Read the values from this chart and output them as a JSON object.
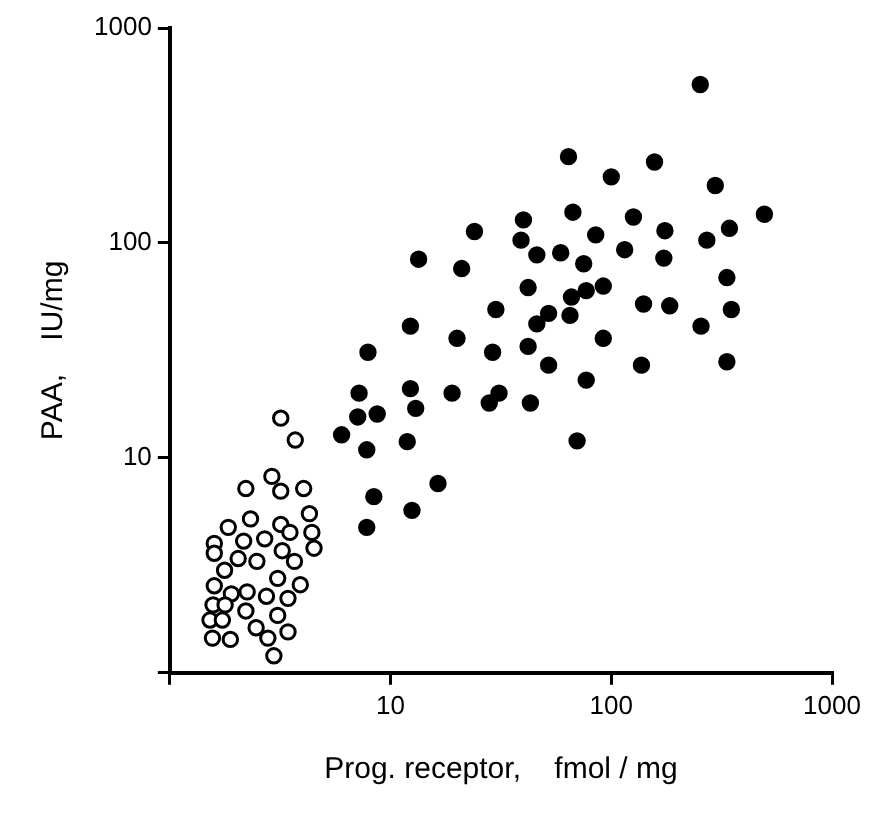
{
  "chart_data": {
    "type": "scatter",
    "xlabel": "Prog. receptor,    fmol / mg",
    "ylabel": "PAA,    IU/mg",
    "log": "xy",
    "grid": false,
    "legend": false,
    "marker": "circle",
    "xlim": [
      1,
      1000
    ],
    "ylim": [
      1,
      1000
    ],
    "xticks": [
      {
        "value": 1,
        "label": null
      },
      10,
      100,
      1000
    ],
    "yticks": [
      {
        "value": 1,
        "label": null
      },
      10,
      100,
      1000
    ],
    "series": [
      {
        "color": "#000000",
        "x": [
          253,
          64,
          157,
          100,
          296,
          67,
          126,
          494,
          40,
          24,
          85,
          175,
          343,
          39,
          271,
          115,
          59,
          46,
          173,
          13.4,
          75,
          21,
          334,
          42,
          92,
          77,
          66,
          140,
          184,
          30,
          52,
          350,
          65,
          46,
          12.3,
          255,
          20,
          92,
          42,
          7.9,
          29,
          52,
          137,
          334,
          77,
          7.2,
          12.3,
          19,
          31,
          28,
          13,
          8.7,
          7.1,
          43,
          6.0,
          11.9,
          7.8,
          70,
          16.4,
          8.4,
          12.5,
          7.8
        ],
        "values": [
          546,
          252,
          238,
          203,
          185,
          139,
          132,
          136,
          128,
          113,
          109,
          114,
          117,
          103,
          103,
          93,
          90,
          88,
          85,
          84,
          80,
          76,
          69,
          62,
          63,
          60,
          56,
          52,
          51,
          49,
          47,
          49,
          46,
          42,
          41,
          41,
          36,
          36,
          33,
          31,
          31,
          27,
          27,
          28,
          23,
          20,
          21,
          20,
          20,
          18,
          17,
          16,
          15.5,
          18,
          12.8,
          11.9,
          10.9,
          12.0,
          7.6,
          6.6,
          5.7,
          4.75
        ]
      },
      {
        "color": "#000000",
        "x": [
          3.18,
          3.7,
          2.9,
          2.21,
          3.18,
          4.04,
          4.29,
          2.32,
          1.84,
          3.18,
          4.4,
          3.5,
          2.16,
          2.69,
          1.59,
          1.59,
          3.23,
          4.5,
          2.04,
          2.48,
          3.67,
          1.77,
          3.08,
          3.9,
          1.59,
          2.24,
          1.9,
          2.74,
          3.43,
          1.57,
          1.78,
          2.21,
          3.08,
          1.52,
          1.73,
          2.46,
          3.43,
          1.56,
          1.88,
          2.78,
          2.96
        ],
        "values": [
          15.3,
          12.1,
          8.2,
          7.2,
          7.0,
          7.2,
          5.5,
          5.2,
          4.75,
          4.9,
          4.5,
          4.5,
          4.1,
          4.2,
          4.0,
          3.6,
          3.7,
          3.8,
          3.4,
          3.3,
          3.3,
          3.0,
          2.75,
          2.57,
          2.54,
          2.38,
          2.33,
          2.27,
          2.22,
          2.07,
          2.07,
          1.94,
          1.85,
          1.76,
          1.76,
          1.62,
          1.55,
          1.45,
          1.43,
          1.45,
          1.2
        ]
      }
    ]
  }
}
